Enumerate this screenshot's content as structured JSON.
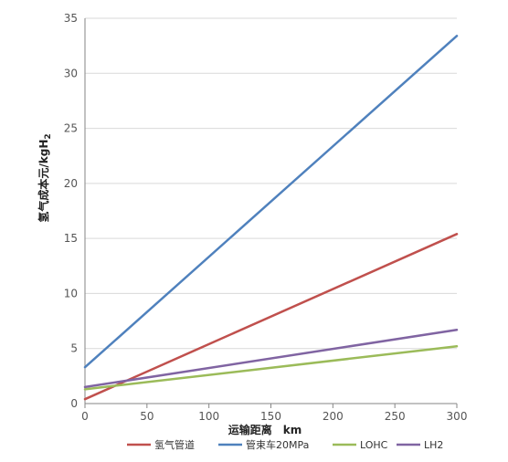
{
  "chart_data": {
    "type": "line",
    "title": "",
    "xlabel": "运输距离　km",
    "ylabel_main": "氢气成本",
    "ylabel_unit": "元/kgH",
    "ylabel_sub": "2",
    "xlim": [
      0,
      300
    ],
    "ylim": [
      0,
      35
    ],
    "x_ticks": [
      0,
      50,
      100,
      150,
      200,
      250,
      300
    ],
    "y_ticks": [
      0,
      5,
      10,
      15,
      20,
      25,
      30,
      35
    ],
    "grid": "horizontal",
    "legend_position": "bottom",
    "x": [
      0,
      300
    ],
    "series": [
      {
        "name": "氢气管道",
        "color": "#C0504D",
        "values": [
          0.4,
          15.4
        ]
      },
      {
        "name": "管束车20MPa",
        "color": "#4F81BD",
        "values": [
          3.3,
          33.4
        ]
      },
      {
        "name": "LOHC",
        "color": "#9BBB59",
        "values": [
          1.3,
          5.2
        ]
      },
      {
        "name": "LH2",
        "color": "#8064A2",
        "values": [
          1.5,
          6.7
        ]
      }
    ]
  }
}
